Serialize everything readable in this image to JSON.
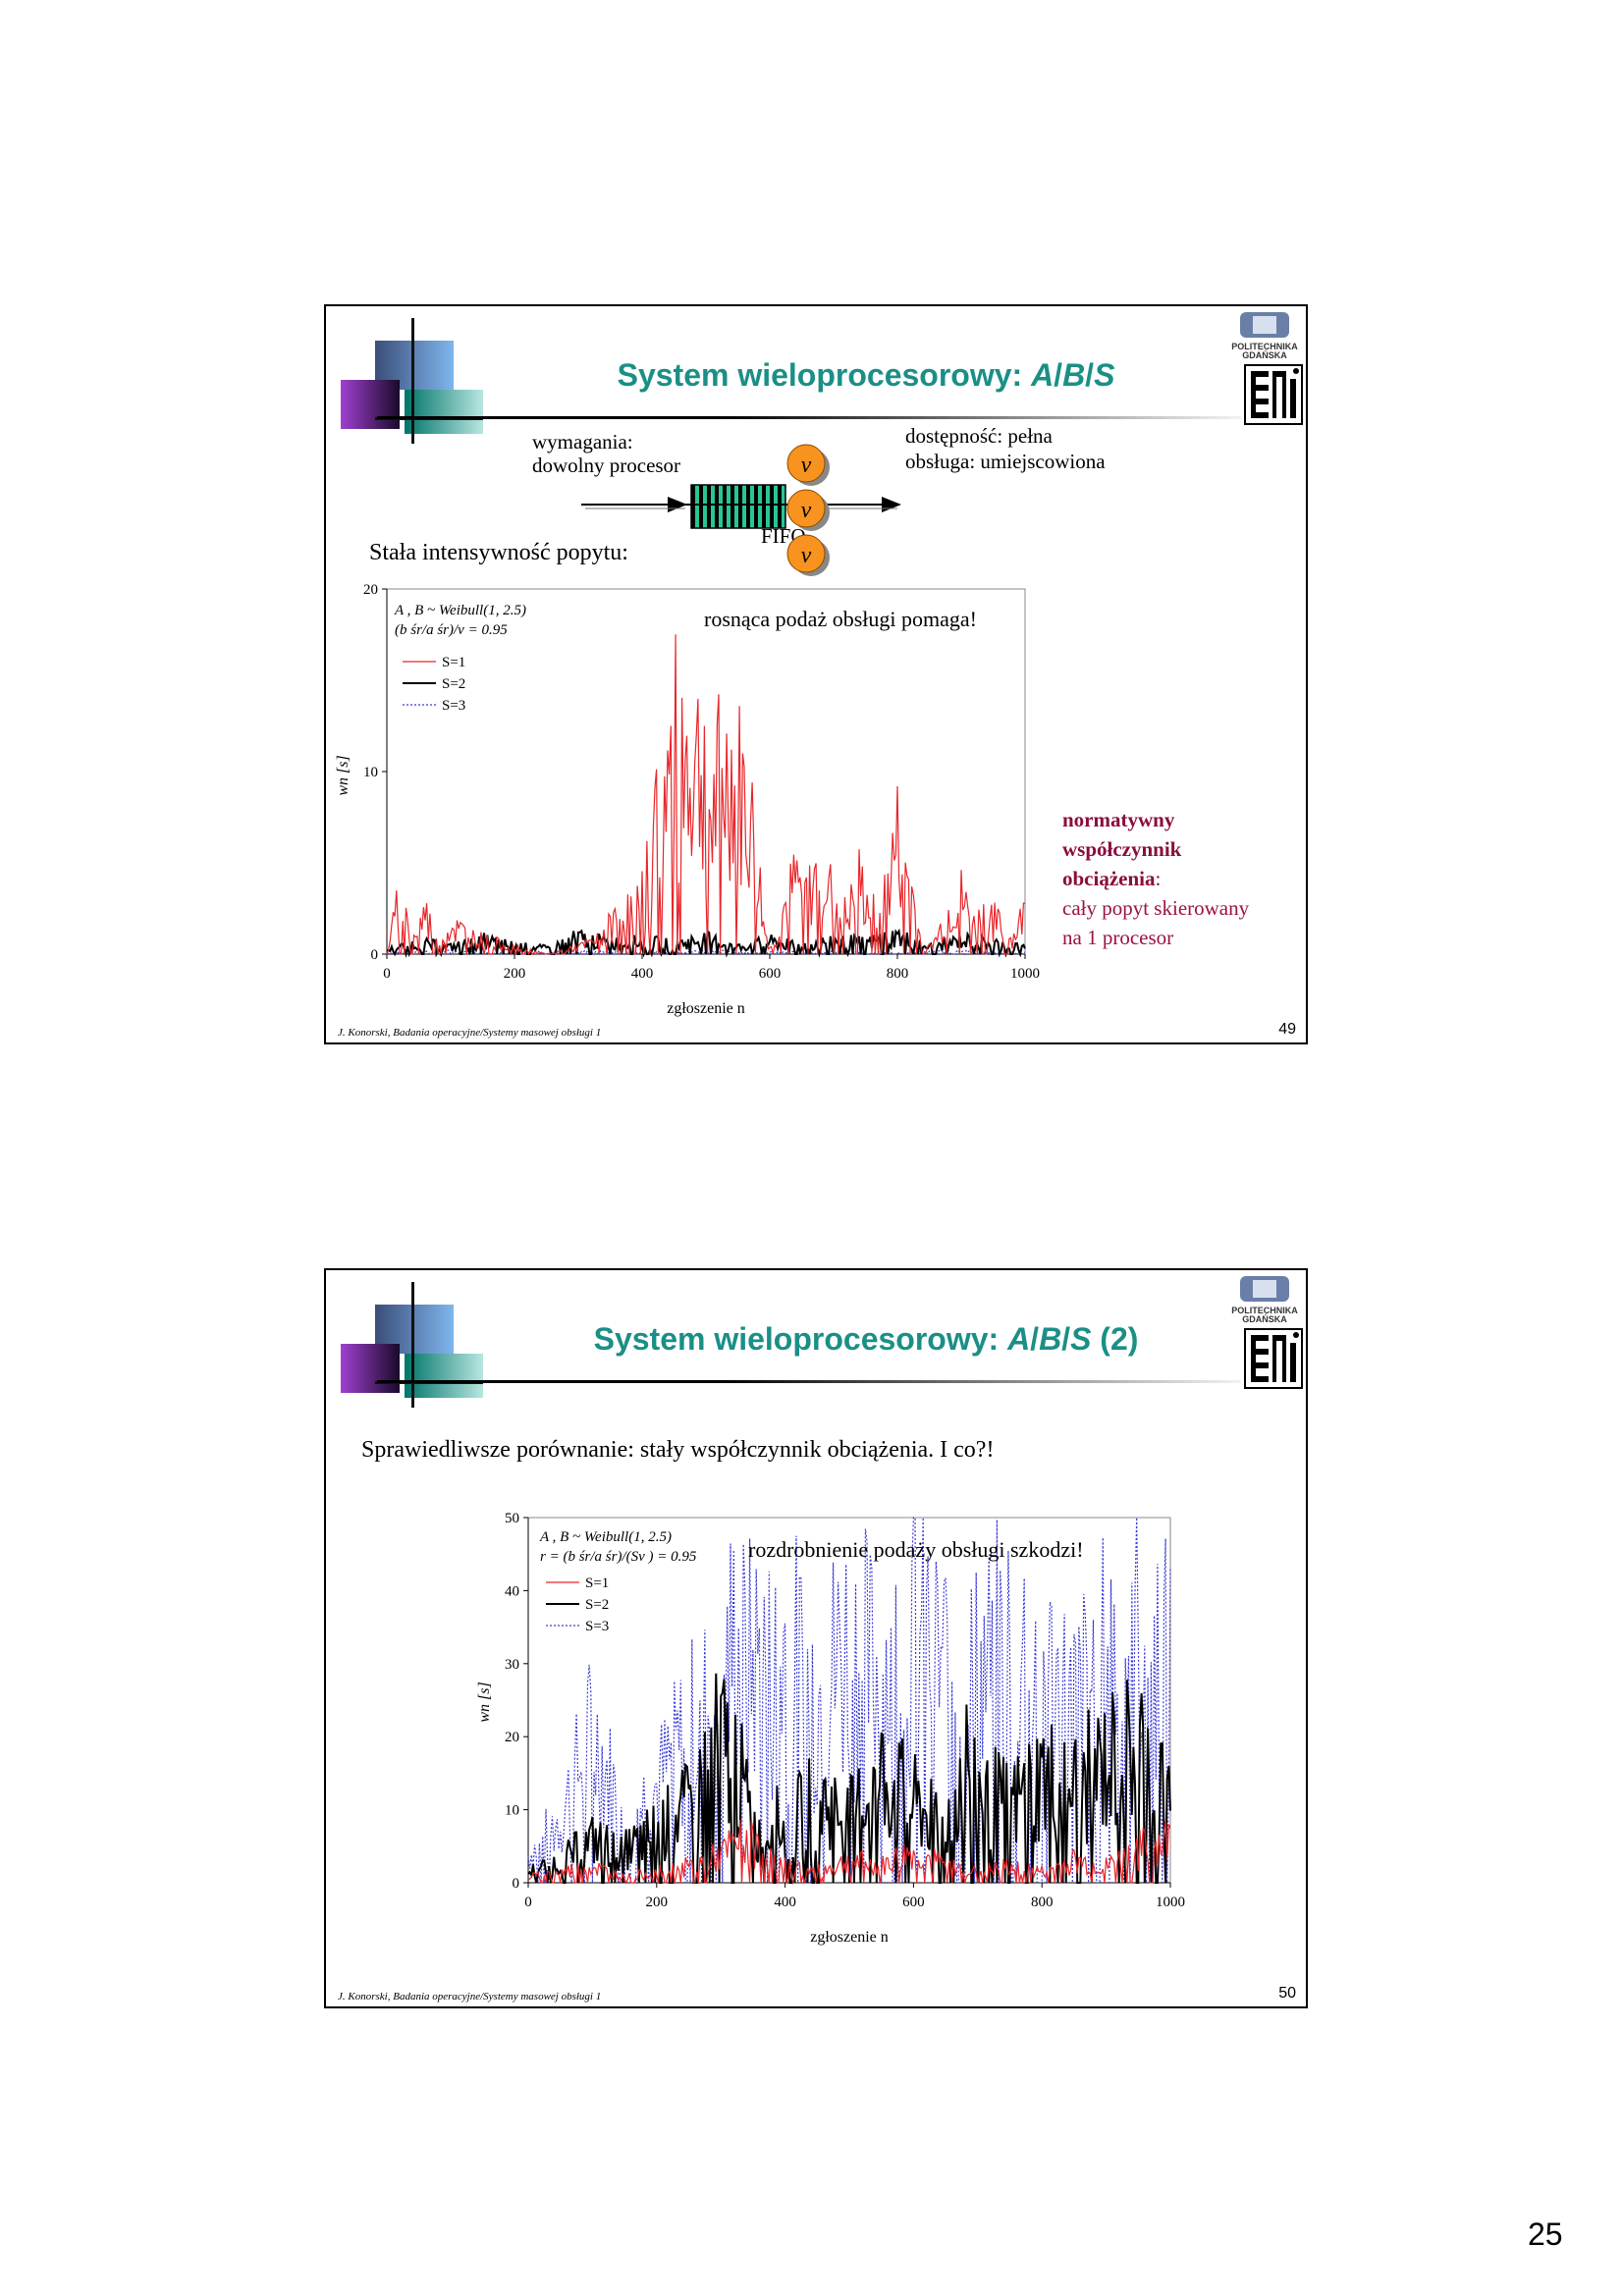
{
  "page_number": "25",
  "slides": [
    {
      "title_main": "System wieloprocesorowy: ",
      "title_a": "A",
      "title_sep1": "/",
      "title_b": "B",
      "title_sep2": "/",
      "title_s": "S",
      "logo_text_1": "POLITECHNIKA",
      "logo_text_2": "GDAŃSKA",
      "diagram": {
        "requirements_1": "wymagania:",
        "requirements_2": "dowolny procesor",
        "availability_1": "dostępność: pełna",
        "availability_2": "obsługa: umiejscowiona",
        "queue_label": "FIFO",
        "server_label": "v"
      },
      "subtitle": "Stała intensywność popytu:",
      "annotation": "rosnąca podaż obsługi pomaga!",
      "note_bold_1": "normatywny",
      "note_bold_2": "współczynnik",
      "note_bold_3": "obciążenia",
      "note_colon": ":",
      "note_4": "cały popyt skierowany",
      "note_5": "na 1 procesor",
      "footer": "J. Konorski, Badania operacyjne/Systemy masowej obsługi 1",
      "number": "49"
    },
    {
      "title_main": "System wieloprocesorowy: ",
      "title_a": "A",
      "title_sep1": "/",
      "title_b": "B",
      "title_sep2": "/",
      "title_s": "S",
      "title_suffix": " (2)",
      "logo_text_1": "POLITECHNIKA",
      "logo_text_2": "GDAŃSKA",
      "subtitle": "Sprawiedliwsze porównanie: stały współczynnik obciążenia. I co?!",
      "annotation": "rozdrobnienie podaży obsługi szkodzi!",
      "footer": "J. Konorski, Badania operacyjne/Systemy masowej obsługi 1",
      "number": "50"
    }
  ],
  "chart_data": [
    {
      "type": "line",
      "legend_line1": "A , B ~  Weibull(1, 2.5)",
      "legend_line2": "(b śr/a śr)/v  = 0.95",
      "ylabel": "wn [s]",
      "xlabel": "zgłoszenie n",
      "xlim": [
        0,
        1000
      ],
      "ylim": [
        0,
        20
      ],
      "xticks": [
        0,
        200,
        400,
        600,
        800,
        1000
      ],
      "yticks": [
        0,
        10,
        20
      ],
      "legend_placement": "top-left",
      "colors": {
        "S=1": "#e8262a",
        "S=2": "#000000",
        "S=3": "#3a3ad6"
      },
      "series": [
        {
          "name": "S=1",
          "x": [
            0,
            20,
            40,
            60,
            80,
            100,
            150,
            200,
            250,
            300,
            330,
            360,
            380,
            400,
            410,
            420,
            440,
            450,
            460,
            480,
            500,
            510,
            520,
            540,
            560,
            580,
            590,
            600,
            610,
            620,
            640,
            660,
            680,
            700,
            720,
            740,
            760,
            780,
            800,
            820,
            840,
            860,
            880,
            900,
            920,
            940,
            960,
            980,
            1000
          ],
          "y": [
            0,
            4,
            1,
            3,
            0.5,
            2,
            1,
            0.5,
            0,
            0.5,
            1,
            2.5,
            3,
            4,
            6,
            9,
            12,
            14.5,
            15,
            14,
            13,
            9,
            12,
            13,
            11,
            7,
            2,
            0.5,
            1,
            3,
            5,
            4,
            6,
            4,
            2.5,
            5,
            3,
            4,
            8,
            5,
            0,
            1,
            3,
            4,
            2,
            3,
            2,
            1,
            3
          ]
        },
        {
          "name": "S=2",
          "x": [
            0,
            50,
            100,
            150,
            200,
            250,
            300,
            350,
            400,
            450,
            500,
            550,
            600,
            650,
            700,
            750,
            800,
            850,
            900,
            950,
            1000
          ],
          "y": [
            0.3,
            0.8,
            0.5,
            1,
            0.6,
            0.4,
            1.2,
            0.8,
            0.9,
            0.7,
            1.1,
            0.5,
            0.9,
            0.6,
            1,
            0.8,
            1.3,
            0.5,
            1,
            0.8,
            0.5
          ]
        },
        {
          "name": "S=3",
          "x": [
            0,
            100,
            200,
            300,
            400,
            500,
            600,
            700,
            800,
            900,
            1000
          ],
          "y": [
            0.1,
            0.2,
            0.1,
            0.2,
            0.1,
            0.2,
            0.1,
            0.2,
            0.1,
            0.2,
            0.1
          ]
        }
      ]
    },
    {
      "type": "line",
      "legend_line1": "A , B ~  Weibull(1, 2.5)",
      "legend_line2": "r  = (b śr/a śr)/(Sv ) =  0.95",
      "ylabel": "wn [s]",
      "xlabel": "zgłoszenie n",
      "xlim": [
        0,
        1000
      ],
      "ylim": [
        0,
        50
      ],
      "xticks": [
        0,
        200,
        400,
        600,
        800,
        1000
      ],
      "yticks": [
        0,
        10,
        20,
        30,
        40,
        50
      ],
      "legend_placement": "top-left",
      "colors": {
        "S=1": "#e8262a",
        "S=2": "#000000",
        "S=3": "#3a3ad6"
      },
      "series": [
        {
          "name": "S=1",
          "x": [
            0,
            50,
            100,
            150,
            200,
            250,
            300,
            320,
            340,
            360,
            380,
            400,
            450,
            500,
            550,
            600,
            650,
            700,
            750,
            800,
            850,
            900,
            950,
            1000
          ],
          "y": [
            1,
            2,
            3,
            1,
            2,
            3,
            5,
            7,
            8,
            6,
            4,
            3,
            2,
            4,
            3,
            6,
            3,
            2,
            3,
            2,
            4,
            3,
            6,
            8
          ]
        },
        {
          "name": "S=2",
          "x": [
            0,
            50,
            100,
            150,
            200,
            250,
            280,
            300,
            320,
            340,
            360,
            380,
            400,
            450,
            500,
            550,
            600,
            650,
            680,
            700,
            750,
            800,
            850,
            900,
            950,
            1000
          ],
          "y": [
            2,
            4,
            8,
            6,
            10,
            14,
            22,
            26,
            24,
            15,
            8,
            12,
            10,
            16,
            12,
            20,
            15,
            10,
            24,
            18,
            14,
            20,
            18,
            22,
            26,
            16
          ]
        },
        {
          "name": "S=3",
          "x": [
            0,
            50,
            100,
            150,
            200,
            250,
            300,
            320,
            340,
            360,
            380,
            400,
            450,
            500,
            550,
            600,
            650,
            700,
            750,
            800,
            850,
            900,
            950,
            1000
          ],
          "y": [
            5,
            12,
            28,
            12,
            18,
            28,
            35,
            45,
            40,
            42,
            38,
            44,
            35,
            45,
            38,
            48,
            40,
            38,
            45,
            40,
            32,
            42,
            45,
            40
          ]
        }
      ]
    }
  ]
}
